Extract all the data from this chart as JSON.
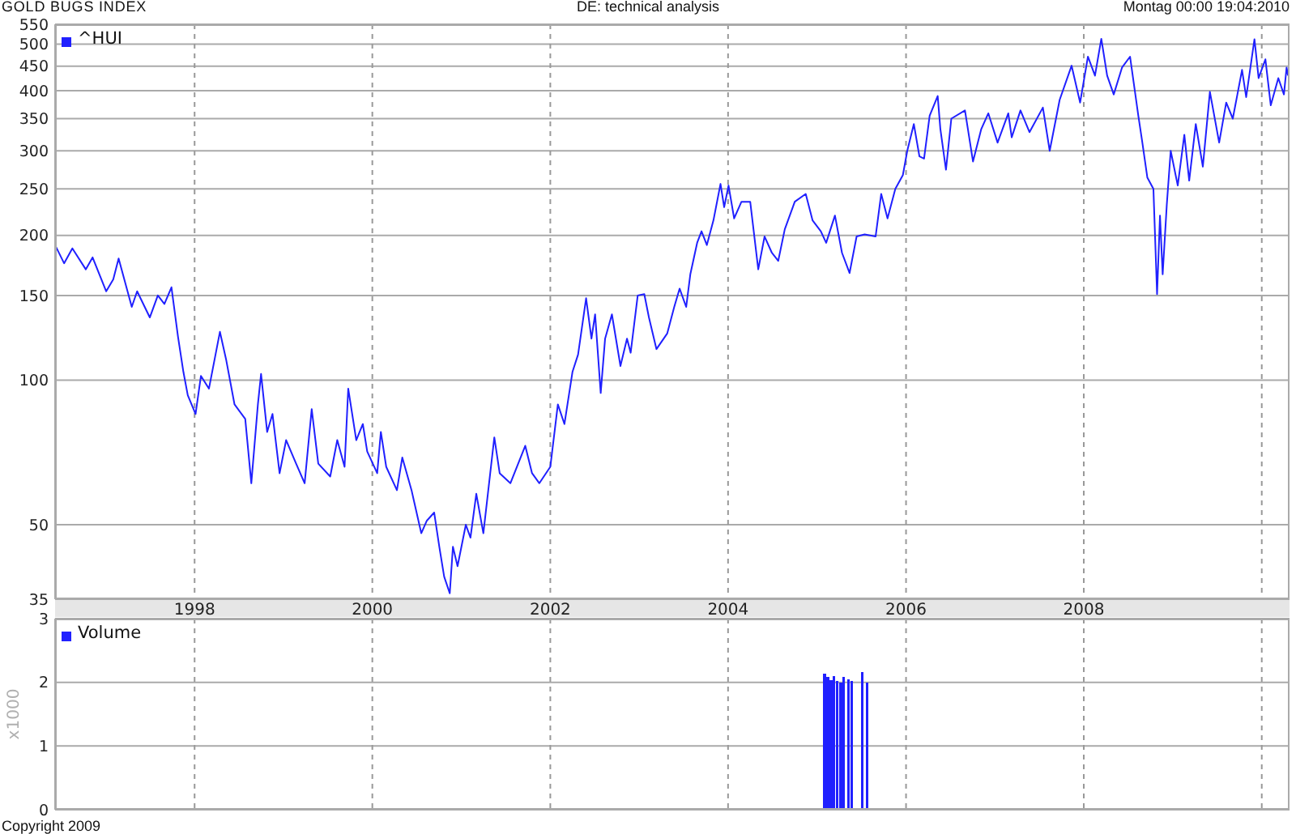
{
  "chart_data": [
    {
      "type": "line",
      "title": "GOLD BUGS INDEX",
      "annotations": [
        "DE: technical analysis",
        "Montag 00:00 19:04:2010"
      ],
      "x": [
        "1996-06-07",
        "1996-07-14",
        "1996-08-17",
        "1996-10-11",
        "1996-11-08",
        "1997-01-03",
        "1997-02-01",
        "1997-02-23",
        "1997-04-18",
        "1997-05-10",
        "1997-07-01",
        "1997-08-03",
        "1997-08-30",
        "1997-09-28",
        "1997-10-25",
        "1997-11-16",
        "1997-12-04",
        "1998-01-05",
        "1998-01-27",
        "1998-03-01",
        "1998-04-15",
        "1998-05-11",
        "1998-06-14",
        "1998-07-28",
        "1998-08-22",
        "1998-09-18",
        "1998-10-01",
        "1998-10-26",
        "1998-11-17",
        "1998-12-16",
        "1999-01-12",
        "1999-02-22",
        "1999-03-29",
        "1999-04-27",
        "1999-05-24",
        "1999-07-12",
        "1999-08-10",
        "1999-09-09",
        "1999-09-24",
        "1999-10-27",
        "1999-11-23",
        "1999-12-11",
        "2000-01-21",
        "2000-02-05",
        "2000-02-27",
        "2000-04-11",
        "2000-05-03",
        "2000-06-10",
        "2000-07-20",
        "2000-08-12",
        "2000-09-11",
        "2000-10-02",
        "2000-10-22",
        "2000-11-14",
        "2000-11-27",
        "2000-12-16",
        "2001-01-19",
        "2001-02-07",
        "2001-03-03",
        "2001-04-01",
        "2001-05-16",
        "2001-06-07",
        "2001-07-21",
        "2001-09-20",
        "2001-10-18",
        "2001-11-17",
        "2002-01-01",
        "2002-02-01",
        "2002-02-28",
        "2002-04-02",
        "2002-04-25",
        "2002-05-28",
        "2002-06-19",
        "2002-07-04",
        "2002-07-27",
        "2002-08-14",
        "2002-09-11",
        "2002-10-16",
        "2002-11-12",
        "2002-11-27",
        "2002-12-26",
        "2003-01-22",
        "2003-02-10",
        "2003-03-13",
        "2003-04-26",
        "2003-05-25",
        "2003-06-16",
        "2003-07-13",
        "2003-07-30",
        "2003-08-27",
        "2003-09-14",
        "2003-10-06",
        "2003-11-02",
        "2003-12-01",
        "2003-12-16",
        "2004-01-03",
        "2004-01-26",
        "2004-02-25",
        "2004-04-01",
        "2004-05-04",
        "2004-05-30",
        "2004-06-29",
        "2004-07-25",
        "2004-08-21",
        "2004-10-01",
        "2004-11-15",
        "2004-12-13",
        "2005-01-16",
        "2005-02-07",
        "2005-03-15",
        "2005-04-13",
        "2005-05-14",
        "2005-06-12",
        "2005-07-15",
        "2005-08-29",
        "2005-09-21",
        "2005-10-17",
        "2005-11-18",
        "2005-12-19",
        "2006-01-06",
        "2006-02-02",
        "2006-02-25",
        "2006-03-16",
        "2006-04-08",
        "2006-05-11",
        "2006-05-22",
        "2006-06-14",
        "2006-07-06",
        "2006-08-31",
        "2006-10-03",
        "2006-11-06",
        "2006-12-05",
        "2007-01-12",
        "2007-02-25",
        "2007-03-11",
        "2007-04-16",
        "2007-05-23",
        "2007-07-17",
        "2007-08-14",
        "2007-09-24",
        "2007-11-12",
        "2007-12-17",
        "2008-01-18",
        "2008-02-16",
        "2008-03-13",
        "2008-04-06",
        "2008-05-03",
        "2008-06-06",
        "2008-07-09",
        "2008-08-12",
        "2008-08-27",
        "2008-09-18",
        "2008-10-13",
        "2008-10-28",
        "2008-11-09",
        "2008-11-20",
        "2008-12-07",
        "2008-12-23",
        "2009-01-21",
        "2009-02-17",
        "2009-03-09",
        "2009-04-05",
        "2009-05-04",
        "2009-06-02",
        "2009-07-10",
        "2009-08-08",
        "2009-09-04",
        "2009-10-12",
        "2009-10-29",
        "2009-12-02",
        "2009-12-19",
        "2010-01-16",
        "2010-02-07",
        "2010-03-10",
        "2010-04-02",
        "2010-04-13",
        "2010-04-19"
      ],
      "series": [
        {
          "name": "^HUI",
          "color": "#2020ff",
          "values": [
            191,
            175,
            188,
            170,
            180,
            153,
            162,
            179,
            142,
            153,
            135,
            150,
            144,
            156,
            123,
            104,
            93,
            85,
            102,
            96,
            126,
            110,
            89,
            83,
            61,
            89,
            103,
            78,
            85,
            64,
            75,
            67,
            61,
            87,
            67,
            63,
            75,
            66,
            96,
            75,
            81,
            71,
            64,
            78,
            66,
            59,
            69,
            59,
            48,
            51,
            53,
            45,
            39,
            36,
            45,
            41,
            50,
            47,
            58,
            48,
            76,
            64,
            61,
            73,
            64,
            61,
            66,
            89,
            81,
            104,
            113,
            148,
            122,
            137,
            94,
            122,
            137,
            107,
            122,
            114,
            150,
            151,
            135,
            116,
            125,
            142,
            155,
            142,
            166,
            193,
            204,
            191,
            215,
            256,
            229,
            254,
            217,
            235,
            235,
            170,
            199,
            184,
            177,
            206,
            235,
            244,
            215,
            204,
            193,
            220,
            184,
            167,
            199,
            201,
            199,
            244,
            217,
            250,
            267,
            300,
            341,
            292,
            289,
            355,
            390,
            333,
            274,
            350,
            364,
            285,
            333,
            359,
            312,
            359,
            320,
            364,
            328,
            369,
            300,
            383,
            451,
            378,
            471,
            430,
            513,
            430,
            393,
            447,
            471,
            355,
            316,
            264,
            250,
            151,
            220,
            166,
            232,
            300,
            254,
            324,
            260,
            341,
            278,
            398,
            312,
            378,
            350,
            442,
            388,
            512,
            425,
            465,
            373,
            425,
            393,
            447,
            430
          ]
        }
      ],
      "xlim": [
        "1996-06-07",
        "2010-04-25"
      ],
      "xticks": [
        "1998",
        "2000",
        "2002",
        "2004",
        "2006",
        "2008",
        {
          "value": "2010",
          "label": null
        }
      ],
      "ylim": [
        35,
        550
      ],
      "yticks": [
        35,
        50,
        100,
        150,
        200,
        250,
        300,
        350,
        400,
        450,
        500,
        550
      ],
      "log": true,
      "grid": true,
      "legend": "top left"
    },
    {
      "type": "bar",
      "ylabel": "x1000",
      "annotations": [
        "Copyright 2009"
      ],
      "x": [
        "2005-02-01",
        "2005-02-14",
        "2005-02-27",
        "2005-03-12",
        "2005-03-25",
        "2005-04-08",
        "2005-04-21",
        "2005-05-11",
        "2005-05-24",
        "2005-07-05",
        "2005-07-25"
      ],
      "series": [
        {
          "name": "Volume",
          "color": "#2020ff",
          "values": [
            2.14,
            2.08,
            2.03,
            2.1,
            2.02,
            2,
            2.08,
            2.05,
            2.02,
            2.16,
            2
          ]
        }
      ],
      "xlim": [
        "1996-06-07",
        "2010-04-25"
      ],
      "xticks": [
        "1998",
        "2000",
        "2002",
        "2004",
        "2006",
        "2008",
        {
          "value": "2010",
          "label": null
        }
      ],
      "ylim": [
        0,
        3
      ],
      "yticks": [
        0,
        1,
        2,
        3
      ],
      "grid": true,
      "legend": "top left",
      "tick_labels": "y"
    }
  ]
}
